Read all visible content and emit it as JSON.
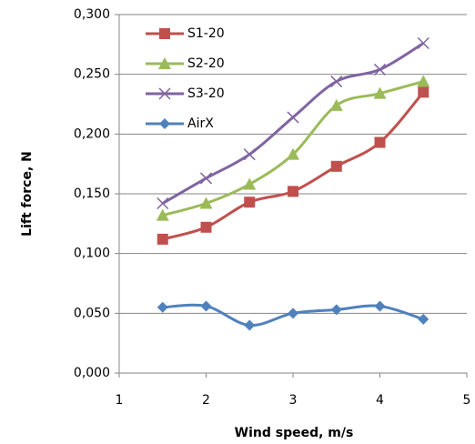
{
  "chart_data": {
    "type": "line",
    "xlabel": "Wind speed, m/s",
    "ylabel": "Lift force, N",
    "x": [
      1.5,
      2,
      2.5,
      3,
      3.5,
      4,
      4.5
    ],
    "series": [
      {
        "name": "S1-20",
        "color": "#c0504d",
        "marker": "square",
        "values": [
          0.112,
          0.122,
          0.143,
          0.152,
          0.173,
          0.193,
          0.235
        ]
      },
      {
        "name": "S2-20",
        "color": "#9bbb59",
        "marker": "triangle",
        "values": [
          0.132,
          0.142,
          0.158,
          0.183,
          0.224,
          0.234,
          0.244
        ]
      },
      {
        "name": "S3-20",
        "color": "#8064a2",
        "marker": "x",
        "values": [
          0.142,
          0.163,
          0.183,
          0.214,
          0.244,
          0.254,
          0.276
        ]
      },
      {
        "name": "AirX",
        "color": "#4f81bd",
        "marker": "diamond",
        "values": [
          0.055,
          0.056,
          0.04,
          0.05,
          0.053,
          0.056,
          0.045
        ]
      }
    ],
    "xlim": [
      1,
      5
    ],
    "xticks": [
      1,
      2,
      3,
      4,
      5
    ],
    "ylim": [
      0,
      0.3
    ],
    "yticks": [
      {
        "value": 0,
        "label": "0,000"
      },
      {
        "value": 0.05,
        "label": "0,050"
      },
      {
        "value": 0.1,
        "label": "0,100"
      },
      {
        "value": 0.15,
        "label": "0,150"
      },
      {
        "value": 0.2,
        "label": "0,200"
      },
      {
        "value": 0.25,
        "label": "0,250"
      },
      {
        "value": 0.3,
        "label": "0,300"
      }
    ],
    "grid": true,
    "legend": "upper left",
    "smooth": true
  }
}
